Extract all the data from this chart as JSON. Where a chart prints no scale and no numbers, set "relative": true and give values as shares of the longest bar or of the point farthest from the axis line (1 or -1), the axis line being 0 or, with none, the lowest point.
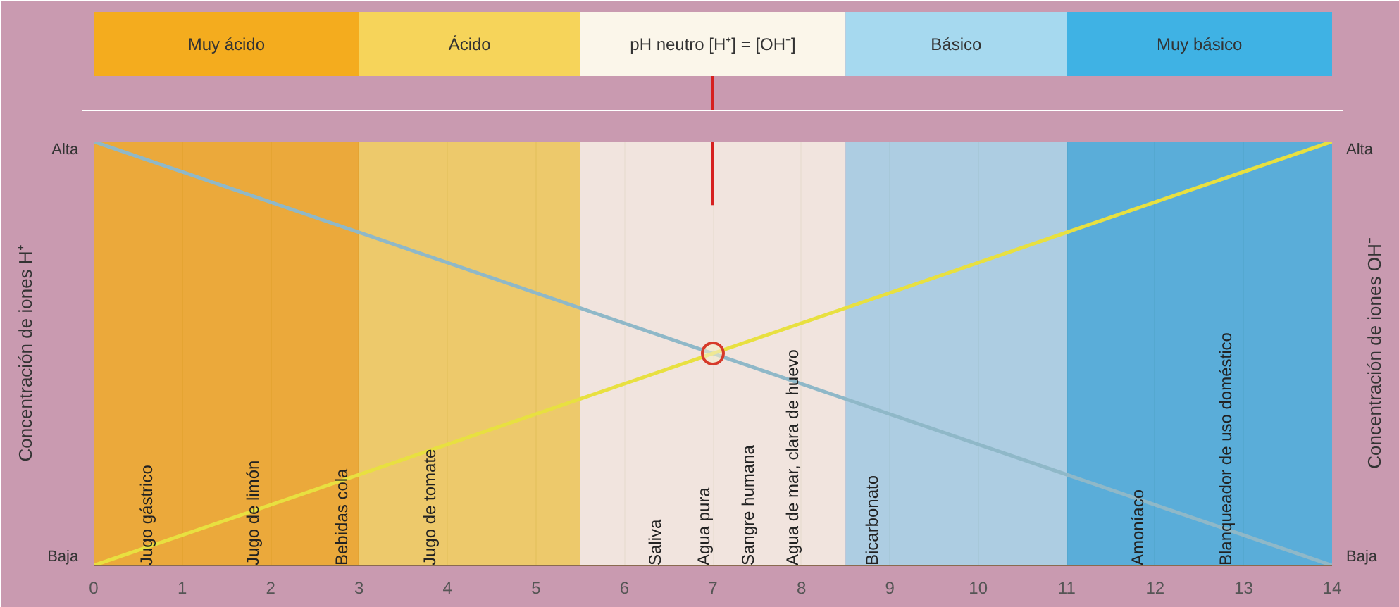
{
  "chart_data": {
    "type": "line",
    "relative": true,
    "xlim": [
      0,
      14
    ],
    "xticks": [
      0,
      1,
      2,
      3,
      4,
      5,
      6,
      7,
      8,
      9,
      10,
      11,
      12,
      13,
      14
    ],
    "ylabel": "Concentración de iones H⁺",
    "y2label": "Concentración de iones OH⁻",
    "grid": "x",
    "series": [
      {
        "x": [
          0,
          14
        ],
        "values": [
          1,
          0
        ],
        "color": "#8fb8c8"
      },
      {
        "x": [
          0,
          14
        ],
        "values": [
          0,
          1
        ],
        "color": "#e8e040"
      },
      {
        "type": "scatter",
        "marker": "circle",
        "x": [
          7
        ],
        "values": [
          0.5
        ],
        "color": "#d63a2a"
      }
    ],
    "bands": [
      {
        "axis": "x",
        "from": 0,
        "to": 3,
        "color": "#f4ac1e"
      },
      {
        "axis": "x",
        "from": 3,
        "to": 5.5,
        "color": "#f6d45a"
      },
      {
        "axis": "x",
        "from": 5.5,
        "to": 8.5,
        "color": "#fbf6ea"
      },
      {
        "axis": "x",
        "from": 8.5,
        "to": 11,
        "color": "#a6d9ef"
      },
      {
        "axis": "x",
        "from": 11,
        "to": 14,
        "color": "#3fb2e4"
      }
    ],
    "ref_lines": [
      {
        "axis": "x",
        "value": 7,
        "color": "#d62020"
      }
    ],
    "annotations": [
      "Alta",
      "Baja",
      "Muy ácido",
      "Ácido",
      "pH neutro [H⁺] = [OH⁻]",
      "Básico",
      "Muy básico",
      {
        "text": "Jugo gástrico",
        "x": 0.6,
        "y": 0
      },
      {
        "text": "Jugo de limón",
        "x": 1.8,
        "y": 0
      },
      {
        "text": "Bebidas cola",
        "x": 2.8,
        "y": 0
      },
      {
        "text": "Jugo de tomate",
        "x": 3.8,
        "y": 0
      },
      {
        "text": "Saliva",
        "x": 6.35,
        "y": 0
      },
      {
        "text": "Agua pura",
        "x": 6.9,
        "y": 0
      },
      {
        "text": "Sangre humana",
        "x": 7.4,
        "y": 0
      },
      {
        "text": "Agua de mar, clara de huevo",
        "x": 7.9,
        "y": 0
      },
      {
        "text": "Bicarbonato",
        "x": 8.8,
        "y": 0
      },
      {
        "text": "Amoníaco",
        "x": 11.8,
        "y": 0
      },
      {
        "text": "Blanqueador de uso doméstico",
        "x": 12.8,
        "y": 0
      }
    ]
  }
}
